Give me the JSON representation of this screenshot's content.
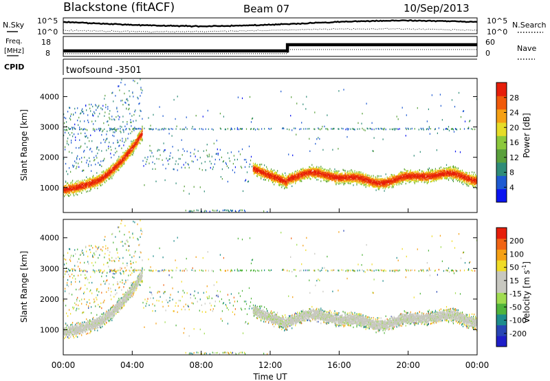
{
  "header": {
    "station": "Blackstone (fitACF)",
    "beam": "Beam 07",
    "date": "10/Sep/2013"
  },
  "noise_panel": {
    "left_label": "N.Sky",
    "right_label": "N.Search",
    "left_ticks": [
      "10^5",
      "10^0"
    ],
    "right_ticks": [
      "10^5",
      "10^0"
    ]
  },
  "freq_panel": {
    "left_label_1": "Freq.",
    "left_label_2": "[MHz]",
    "right_label": "Nave",
    "left_ticks": [
      "18",
      "8"
    ],
    "right_ticks": [
      "60",
      "0"
    ]
  },
  "cpid_panel": {
    "label": "CPID",
    "program": "twofsound  -3501"
  },
  "chart_data": [
    {
      "type": "heatmap",
      "name": "power",
      "ylabel": "Slant Range [km]",
      "ytick_labels": [
        "1000",
        "2000",
        "3000",
        "4000"
      ],
      "yticks": [
        1000,
        2000,
        3000,
        4000
      ],
      "ylim": [
        180,
        4600
      ],
      "xlim": [
        0,
        24
      ],
      "colorbar": {
        "label": "Power [dB]",
        "tick_labels": [
          "4",
          "8",
          "12",
          "16",
          "20",
          "24",
          "28"
        ],
        "colors": [
          "#0a14f0",
          "#1e5ad2",
          "#2f8c78",
          "#5aa03c",
          "#8cc83c",
          "#e6dc28",
          "#f5a014",
          "#f05a0a",
          "#e61e0a"
        ]
      }
    },
    {
      "type": "heatmap",
      "name": "velocity",
      "ylabel": "Slant Range [km]",
      "ytick_labels": [
        "1000",
        "2000",
        "3000",
        "4000"
      ],
      "yticks": [
        1000,
        2000,
        3000,
        4000
      ],
      "ylim": [
        180,
        4600
      ],
      "xlim": [
        0,
        24
      ],
      "xlabel": "Time UT",
      "xtick_labels": [
        "00:00",
        "04:00",
        "08:00",
        "12:00",
        "16:00",
        "20:00",
        "00:00"
      ],
      "xticks": [
        0,
        4,
        8,
        12,
        16,
        20,
        24
      ],
      "colorbar": {
        "label_main": "Velocity [m s",
        "label_sup": "-1",
        "label_end": "]",
        "tick_labels": [
          "200",
          "100",
          "50",
          "15",
          "-15",
          "-50",
          "-100",
          "-200"
        ],
        "colors": [
          "#1e1ec8",
          "#2846b4",
          "#1e8c8c",
          "#50b43c",
          "#a0dc50",
          "#c8c8c0",
          "#c8c8c0",
          "#f0dc28",
          "#f5a014",
          "#f06414",
          "#e61e0a"
        ]
      }
    }
  ]
}
